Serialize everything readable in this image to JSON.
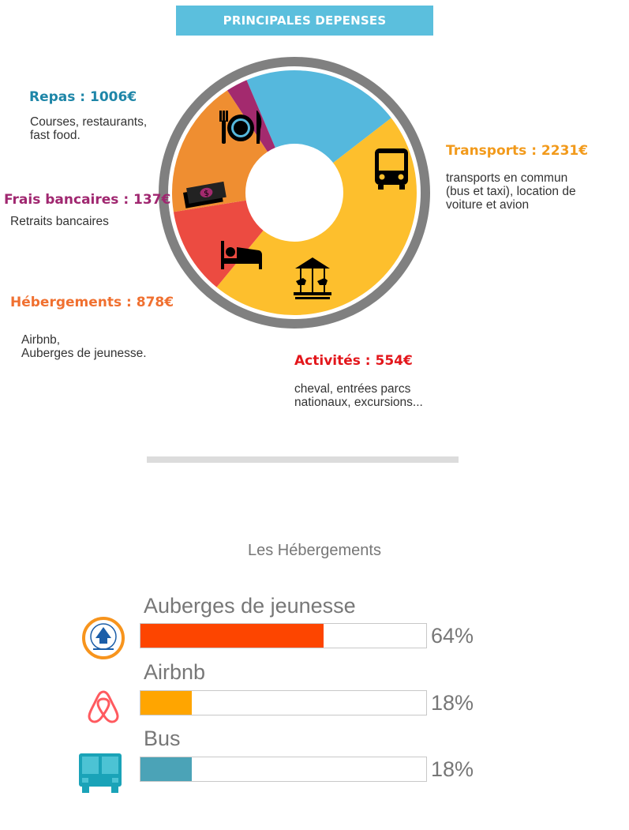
{
  "header": {
    "title": "PRINCIPALES DEPENSES"
  },
  "chart_data": [
    {
      "type": "pie",
      "title": "PRINCIPALES DEPENSES",
      "unit": "€",
      "slices": [
        {
          "key": "repas",
          "label": "Repas : 1006€",
          "name": "Repas",
          "value": 1006,
          "color": "#55b8dd",
          "title_color": "#1e86a8",
          "description": "Courses, restaurants,\nfast food.",
          "icon": "fork-plate-knife-icon"
        },
        {
          "key": "transports",
          "label": "Transports : 2231€",
          "name": "Transports",
          "value": 2231,
          "color": "#fdbf2d",
          "title_color": "#f29a1b",
          "description": "transports en commun\n(bus et taxi), location de\nvoiture et avion",
          "icon": "bus-icon"
        },
        {
          "key": "activites",
          "label": "Activités : 554€",
          "name": "Activités",
          "value": 554,
          "color": "#ec4b41",
          "title_color": "#e3161b",
          "description": "cheval, entrées parcs\nnationaux, excursions...",
          "icon": "carousel-icon"
        },
        {
          "key": "hebergements",
          "label": "Hébergements : 878€",
          "name": "Hébergements",
          "value": 878,
          "color": "#ef8e31",
          "title_color": "#f07030",
          "description": "Airbnb,\nAuberges de jeunesse.",
          "icon": "bed-icon"
        },
        {
          "key": "frais",
          "label": "Frais bancaires : 137€",
          "name": "Frais bancaires",
          "value": 137,
          "color": "#a32a6e",
          "title_color": "#a02770",
          "description": "Retraits bancaires",
          "icon": "banknotes-icon"
        }
      ]
    },
    {
      "type": "bar",
      "title": "Les Hébergements",
      "orientation": "horizontal",
      "xlim": [
        0,
        100
      ],
      "categories": [
        "Auberges de jeunesse",
        "Airbnb",
        "Bus"
      ],
      "values": [
        64,
        18,
        18
      ],
      "value_labels": [
        "64%",
        "18%",
        "18%"
      ],
      "colors": [
        "#fd4500",
        "#ffa500",
        "#4ba3b7"
      ],
      "icons": [
        "hostelling-international-logo",
        "airbnb-logo",
        "bus-icon"
      ]
    }
  ]
}
